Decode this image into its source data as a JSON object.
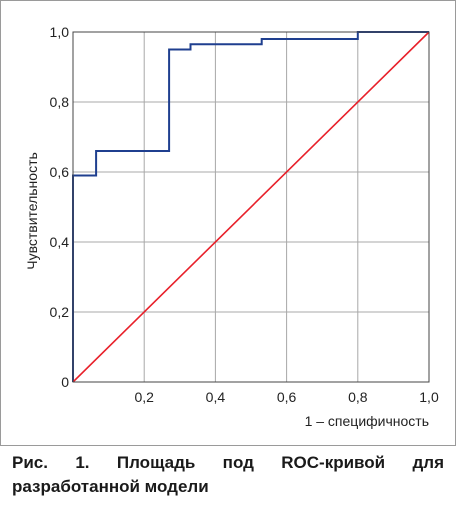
{
  "chart_data": {
    "type": "line",
    "xlabel": "1 – специфичность",
    "ylabel": "Чувствительность",
    "xlim": [
      0,
      1
    ],
    "ylim": [
      0,
      1
    ],
    "grid": true,
    "x_ticks": [
      "0",
      "0,2",
      "0,4",
      "0,6",
      "0,8",
      "1,0"
    ],
    "y_ticks": [
      "0",
      "0,2",
      "0,4",
      "0,6",
      "0,8",
      "1,0"
    ],
    "series": [
      {
        "color": "#1f3f8f",
        "step": true,
        "x": [
          0,
          0,
          0.065,
          0.065,
          0.27,
          0.27,
          0.33,
          0.33,
          0.53,
          0.53,
          0.8,
          0.8,
          1.0
        ],
        "y": [
          0,
          0.59,
          0.59,
          0.66,
          0.66,
          0.95,
          0.95,
          0.965,
          0.965,
          0.98,
          0.98,
          1.0,
          1.0
        ]
      },
      {
        "color": "#e8202a",
        "x": [
          0,
          1
        ],
        "y": [
          0,
          1
        ]
      }
    ]
  },
  "caption": {
    "text": "Рис. 1. Площадь под ROC-кривой для разработанной модели"
  }
}
